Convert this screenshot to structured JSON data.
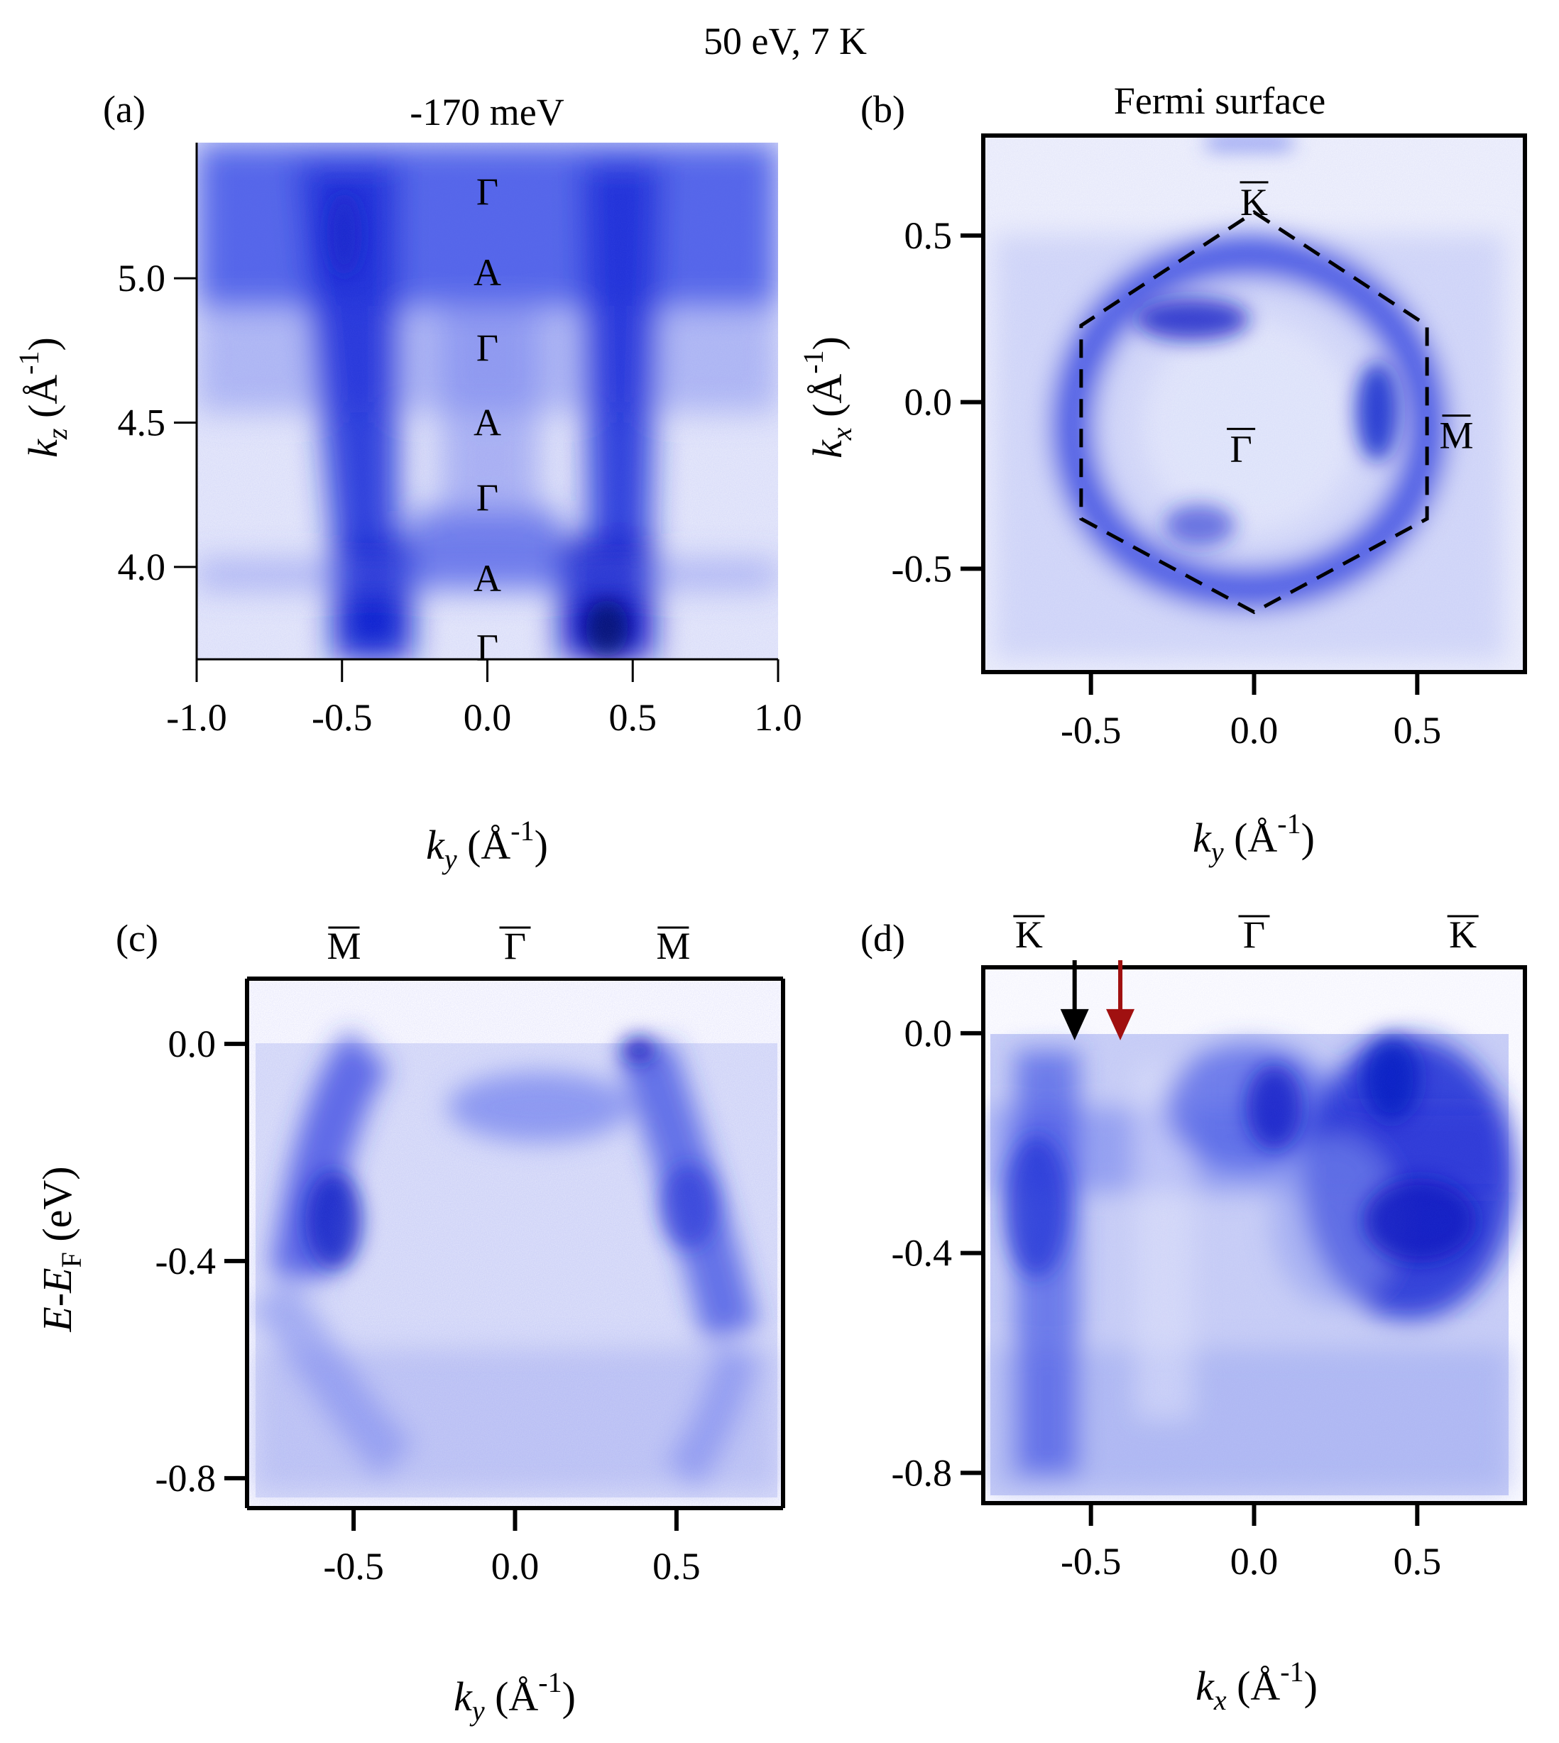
{
  "figure_title": "50 eV, 7 K",
  "chart_data": [
    {
      "panel": "(a)",
      "type": "heatmap",
      "title": "-170 meV",
      "x_sym": "k",
      "x_sub": "y",
      "y_sym": "k",
      "y_sub": "z",
      "unit_open": " (Å",
      "unit_close": ")",
      "unit_exp": "-1",
      "xlim": [
        -1.0,
        1.0
      ],
      "ylim": [
        3.68,
        5.47
      ],
      "xticks": [
        -1.0,
        -0.5,
        0.0,
        0.5,
        1.0
      ],
      "xtick_labels": [
        "-1.0",
        "-0.5",
        "0.0",
        "0.5",
        "1.0"
      ],
      "yticks": [
        4.0,
        4.5,
        5.0
      ],
      "ytick_labels": [
        "4.0",
        "4.5",
        "5.0"
      ],
      "tick_direction": "out",
      "colormap": "white-to-blue",
      "annotations": [
        {
          "text": "Γ",
          "x": 0.0,
          "y": 5.3
        },
        {
          "text": "A",
          "x": 0.0,
          "y": 5.02
        },
        {
          "text": "Γ",
          "x": 0.0,
          "y": 4.76
        },
        {
          "text": "A",
          "x": 0.0,
          "y": 4.5
        },
        {
          "text": "Γ",
          "x": 0.0,
          "y": 4.24
        },
        {
          "text": "A",
          "x": 0.0,
          "y": 3.96
        },
        {
          "text": "Γ",
          "x": 0.0,
          "y": 3.72
        }
      ]
    },
    {
      "panel": "(b)",
      "type": "heatmap",
      "title": "Fermi surface",
      "x_sym": "k",
      "x_sub": "y",
      "y_sym": "k",
      "y_sub": "x",
      "unit_open": " (Å",
      "unit_close": ")",
      "unit_exp": "-1",
      "xlim": [
        -0.83,
        0.83
      ],
      "ylim": [
        -0.81,
        0.8
      ],
      "xticks": [
        -0.5,
        0.0,
        0.5
      ],
      "xtick_labels": [
        "-0.5",
        "0.0",
        "0.5"
      ],
      "yticks": [
        -0.5,
        0.0,
        0.5
      ],
      "ytick_labels": [
        "-0.5",
        "0.0",
        "0.5"
      ],
      "tick_direction": "out",
      "colormap": "white-to-blue",
      "brillouin_zone": [
        [
          0.0,
          0.57
        ],
        [
          0.53,
          0.23
        ],
        [
          0.53,
          -0.35
        ],
        [
          0.0,
          -0.63
        ],
        [
          -0.53,
          -0.35
        ],
        [
          -0.53,
          0.23
        ]
      ],
      "annotations": [
        {
          "text": "K",
          "overline": true,
          "x": 0.0,
          "y": 0.6
        },
        {
          "text": "Γ",
          "overline": true,
          "x": -0.04,
          "y": -0.14
        },
        {
          "text": "M",
          "overline": true,
          "x": 0.62,
          "y": -0.1
        }
      ]
    },
    {
      "panel": "(c)",
      "type": "heatmap",
      "title": "",
      "x_sym": "k",
      "x_sub": "y",
      "y_label": "E-E",
      "y_sub": "F",
      "y_unit": " (eV)",
      "unit_open": " (Å",
      "unit_close": ")",
      "unit_exp": "-1",
      "xlim": [
        -0.83,
        0.83
      ],
      "ylim": [
        -0.855,
        0.12
      ],
      "xticks": [
        -0.5,
        0.0,
        0.5
      ],
      "xtick_labels": [
        "-0.5",
        "0.0",
        "0.5"
      ],
      "yticks": [
        0.0,
        -0.4,
        -0.8
      ],
      "ytick_labels": [
        "0.0",
        "-0.4",
        "-0.8"
      ],
      "tick_direction": "out",
      "colormap": "white-to-blue",
      "top_labels": [
        {
          "text": "M",
          "overline": true,
          "x": -0.53
        },
        {
          "text": "Γ",
          "overline": true,
          "x": 0.0
        },
        {
          "text": "M",
          "overline": true,
          "x": 0.49
        }
      ]
    },
    {
      "panel": "(d)",
      "type": "heatmap",
      "title": "",
      "x_sym": "k",
      "x_sub": "x",
      "unit_open": " (Å",
      "unit_close": ")",
      "unit_exp": "-1",
      "xlim": [
        -0.83,
        0.83
      ],
      "ylim": [
        -0.855,
        0.12
      ],
      "xticks": [
        -0.5,
        0.0,
        0.5
      ],
      "xtick_labels": [
        "-0.5",
        "0.0",
        "0.5"
      ],
      "yticks": [
        0.0,
        -0.4,
        -0.8
      ],
      "ytick_labels": [
        "0.0",
        "-0.4",
        "-0.8"
      ],
      "tick_direction": "out",
      "colormap": "white-to-blue",
      "top_labels": [
        {
          "text": "K",
          "overline": true,
          "x": -0.69
        },
        {
          "text": "Γ",
          "overline": true,
          "x": 0.0
        },
        {
          "text": "K",
          "overline": true,
          "x": 0.64
        }
      ],
      "arrows": [
        {
          "x": -0.55,
          "color": "#000000"
        },
        {
          "x": -0.41,
          "color": "#a01010"
        }
      ]
    }
  ]
}
